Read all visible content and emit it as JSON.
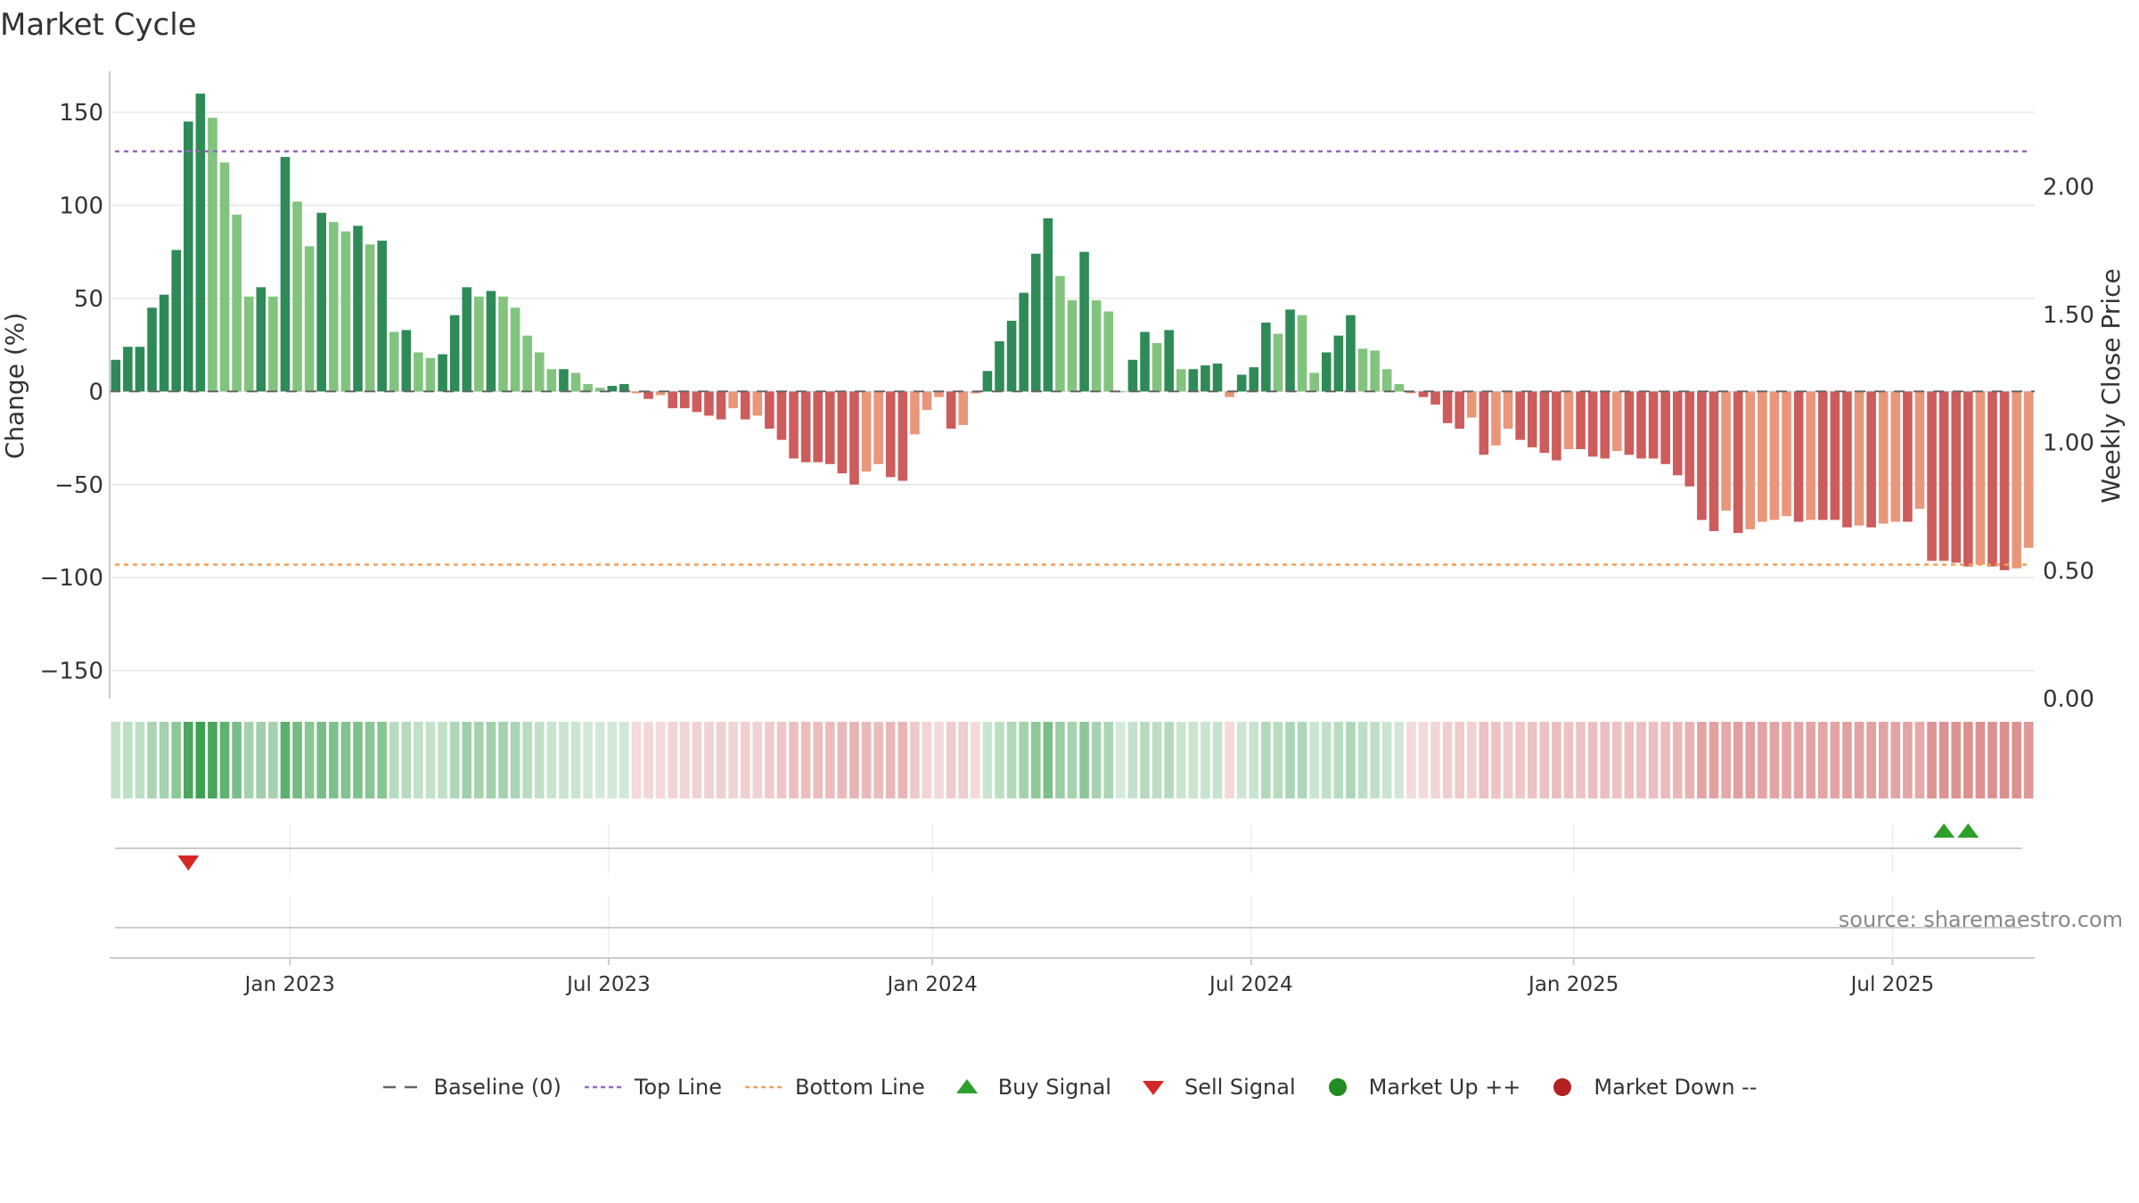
{
  "chart_data": {
    "type": "bar",
    "title": "Market Cycle",
    "ylabel": "Change (%)",
    "y2label": "Weekly Close Price",
    "source": "source: sharemaestro.com",
    "ylim": [
      -165,
      172
    ],
    "y2lim": [
      0.0,
      2.45
    ],
    "yticks": [
      150,
      100,
      50,
      0,
      -50,
      -100,
      -150
    ],
    "ytick_labels": [
      "150",
      "100",
      "50",
      "0",
      "−50",
      "−100",
      "−150"
    ],
    "y2ticks": [
      2.0,
      1.5,
      1.0,
      0.5,
      0.0
    ],
    "y2tick_labels": [
      "2.00",
      "1.50",
      "1.00",
      "0.50",
      "0.00"
    ],
    "xlim_weeks": [
      0,
      157
    ],
    "xticks": [
      {
        "label": "Jan 2023",
        "week": 14.7
      },
      {
        "label": "Jul 2023",
        "week": 40.7
      },
      {
        "label": "Jan 2024",
        "week": 67.1
      },
      {
        "label": "Jul 2024",
        "week": 93.1
      },
      {
        "label": "Jan 2025",
        "week": 119.4
      },
      {
        "label": "Jul 2025",
        "week": 145.4
      }
    ],
    "top_line": 129,
    "bottom_line": -93,
    "values": [
      17,
      24,
      24,
      45,
      52,
      76,
      145,
      160,
      147,
      123,
      95,
      51,
      56,
      51,
      126,
      102,
      78,
      96,
      91,
      86,
      89,
      79,
      81,
      32,
      33,
      21,
      18,
      20,
      41,
      56,
      51,
      54,
      51,
      45,
      30,
      21,
      12,
      12,
      10,
      4,
      2,
      3,
      4,
      -1,
      -4,
      -2,
      -9,
      -9,
      -11,
      -13,
      -15,
      -9,
      -15,
      -13,
      -20,
      -26,
      -36,
      -38,
      -38,
      -39,
      -44,
      -50,
      -43,
      -39,
      -46,
      -48,
      -23,
      -10,
      -3,
      -20,
      -18,
      -1,
      11,
      27,
      38,
      53,
      74,
      93,
      62,
      49,
      75,
      49,
      43,
      0,
      17,
      32,
      26,
      33,
      12,
      12,
      14,
      15,
      -3,
      9,
      13,
      37,
      31,
      44,
      41,
      10,
      21,
      30,
      41,
      23,
      22,
      12,
      4,
      -1,
      -3,
      -7,
      -17,
      -20,
      -14,
      -34,
      -29,
      -20,
      -26,
      -30,
      -33,
      -37,
      -31,
      -31,
      -35,
      -36,
      -32,
      -34,
      -36,
      -36,
      -39,
      -45,
      -51,
      -69,
      -75,
      -64,
      -76,
      -74,
      -70,
      -69,
      -67,
      -70,
      -69,
      -69,
      -69,
      -73,
      -72,
      -73,
      -71,
      -70,
      -70,
      -63,
      -91,
      -91,
      -92,
      -94,
      -93,
      -94,
      -96,
      -95,
      -84
    ],
    "signals": {
      "sell_weeks": [
        6
      ],
      "buy_weeks": [
        151,
        153
      ]
    },
    "legend": [
      {
        "key": "baseline",
        "label": "Baseline (0)",
        "color": "#666666"
      },
      {
        "key": "top",
        "label": "Top Line",
        "color": "#9467bd"
      },
      {
        "key": "bottom",
        "label": "Bottom Line",
        "color": "#f0a05a"
      },
      {
        "key": "buy",
        "label": "Buy Signal",
        "color": "#2ca02c"
      },
      {
        "key": "sell",
        "label": "Sell Signal",
        "color": "#d62728"
      },
      {
        "key": "up",
        "label": "Market Up ++",
        "color": "#228b22"
      },
      {
        "key": "down",
        "label": "Market Down --",
        "color": "#b22222"
      }
    ],
    "colors": {
      "pos_strong": "#2e8b57",
      "pos_weak": "#82c47e",
      "neg_strong": "#cd5c5c",
      "neg_weak": "#e9967a",
      "grid": "#e6e6e6",
      "axis": "#cccccc"
    }
  }
}
